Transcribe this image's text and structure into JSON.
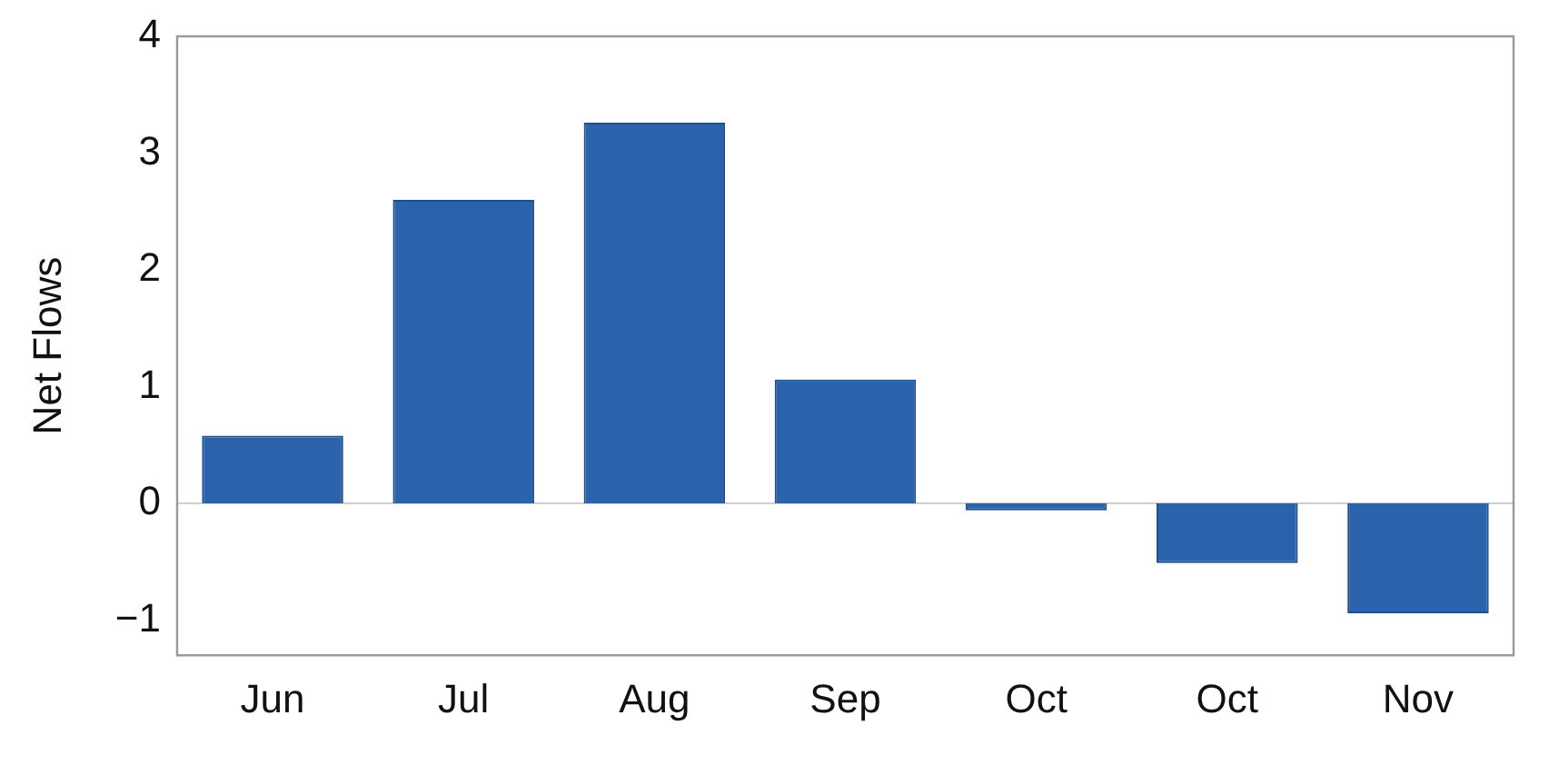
{
  "chart_data": {
    "type": "bar",
    "ylabel": "Net Flows",
    "categories": [
      "Jun",
      "Jul",
      "Aug",
      "Sep",
      "Oct",
      "Oct",
      "Nov"
    ],
    "values": [
      0.58,
      2.6,
      3.26,
      1.06,
      -0.06,
      -0.51,
      -0.94
    ],
    "color": "#2a62ab",
    "ylim": [
      -1.3,
      4
    ],
    "yticks": [
      -1,
      0,
      1,
      2,
      3,
      4
    ],
    "grid": false,
    "ref_lines": [
      {
        "axis": "y",
        "value": 0,
        "color": "#d0d0d0"
      }
    ]
  }
}
